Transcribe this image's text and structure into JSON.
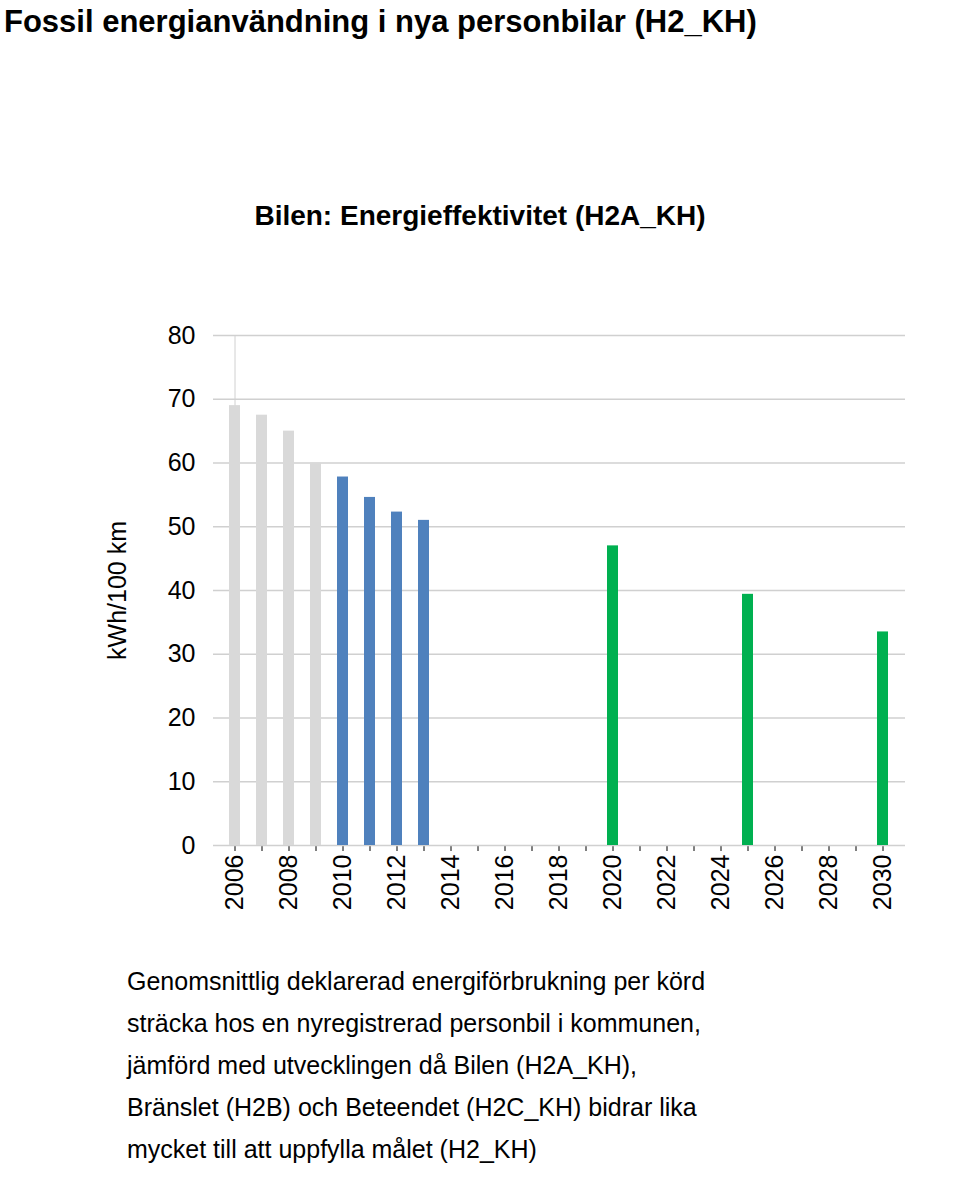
{
  "chart_data": {
    "type": "bar",
    "title": "Fossil energianvändning i nya personbilar (H2_KH)",
    "subtitle": "Bilen: Energieffektivitet (H2A_KH)",
    "y_label": "kWh/100 km",
    "caption": "Genomsnittlig deklarerad energiförbrukning per körd\nsträcka hos en nyregistrerad personbil i kommunen,\njämförd med utvecklingen då Bilen (H2A_KH),\nBränslet (H2B) och Beteendet (H2C_KH) bidrar lika\nmycket till att uppfylla målet (H2_KH)",
    "categories": [
      "2006",
      null,
      "2008",
      null,
      "2010",
      null,
      "2012",
      null,
      "2014",
      null,
      "2016",
      null,
      "2018",
      null,
      "2020",
      null,
      "2022",
      null,
      "2024",
      null,
      "2026",
      null,
      "2028",
      null,
      "2030"
    ],
    "values": [
      69,
      67.5,
      65,
      60,
      57.8,
      54.6,
      52.3,
      51,
      null,
      null,
      null,
      null,
      null,
      null,
      47,
      null,
      null,
      null,
      null,
      39.4,
      null,
      null,
      null,
      null,
      33.5
    ],
    "colors": [
      "#d9d9d9",
      "#d9d9d9",
      "#d9d9d9",
      "#d9d9d9",
      "#4f81bd",
      "#4f81bd",
      "#4f81bd",
      "#4f81bd",
      null,
      null,
      null,
      null,
      null,
      null,
      "#00b050",
      null,
      null,
      null,
      null,
      "#00b050",
      null,
      null,
      null,
      null,
      "#00b050"
    ],
    "ylim": [
      0,
      80
    ],
    "yticks": [
      0,
      10,
      20,
      30,
      40,
      50,
      60,
      70,
      80
    ],
    "grid": true
  }
}
